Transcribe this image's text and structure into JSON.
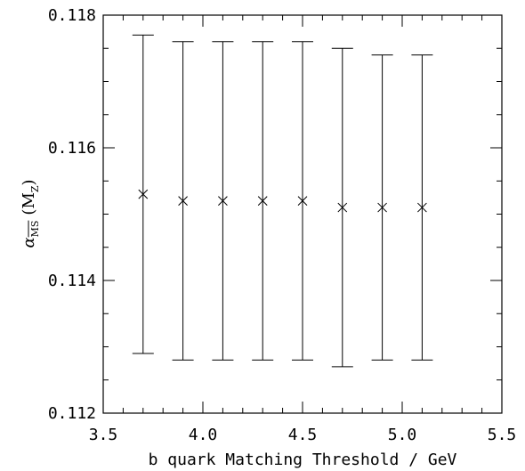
{
  "chart_data": {
    "type": "scatter",
    "xlabel": "b quark Matching Threshold / GeV",
    "ylabel": {
      "symbol": "α",
      "subscript": "MS",
      "argument": "(M",
      "argument_subscript": "Z",
      "argument_close": ")"
    },
    "xlim": [
      3.5,
      5.5
    ],
    "ylim": [
      0.112,
      0.118
    ],
    "x_ticks": [
      "3.5",
      "4.0",
      "4.5",
      "5.0",
      "5.5"
    ],
    "y_ticks": [
      "0.112",
      "0.114",
      "0.116",
      "0.118"
    ],
    "grid": false,
    "marker": "cross",
    "series": [
      {
        "points": [
          {
            "x": 3.7,
            "y": 0.1153,
            "ymin": 0.1129,
            "ymax": 0.1177
          },
          {
            "x": 3.9,
            "y": 0.1152,
            "ymin": 0.1128,
            "ymax": 0.1176
          },
          {
            "x": 4.1,
            "y": 0.1152,
            "ymin": 0.1128,
            "ymax": 0.1176
          },
          {
            "x": 4.3,
            "y": 0.1152,
            "ymin": 0.1128,
            "ymax": 0.1176
          },
          {
            "x": 4.5,
            "y": 0.1152,
            "ymin": 0.1128,
            "ymax": 0.1176
          },
          {
            "x": 4.7,
            "y": 0.1151,
            "ymin": 0.1127,
            "ymax": 0.1175
          },
          {
            "x": 4.9,
            "y": 0.1151,
            "ymin": 0.1128,
            "ymax": 0.1174
          },
          {
            "x": 5.1,
            "y": 0.1151,
            "ymin": 0.1128,
            "ymax": 0.1174
          }
        ]
      }
    ]
  }
}
